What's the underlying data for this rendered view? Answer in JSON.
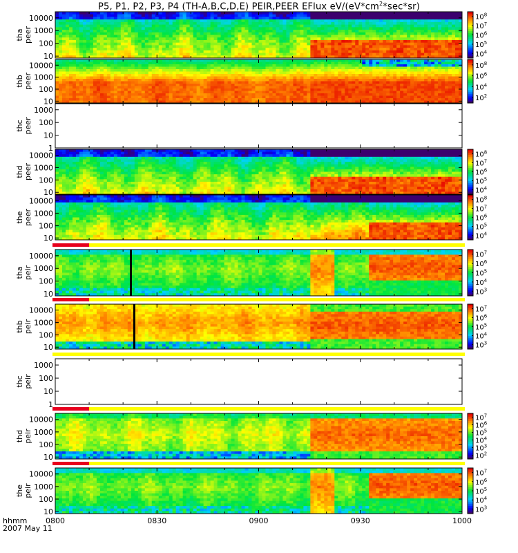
{
  "title": {
    "prefix": "P5, P1, P2, P3, P4 (TH-A,B,C,D,E) PEIR,PEER EFlux eV/(eV*cm",
    "exponent": "2",
    "suffix": "*sec*sr)"
  },
  "footer": {
    "xunit": "hhmm",
    "date": "2007 May 11"
  },
  "chart_data": {
    "type": "heatmap",
    "x_ticks": [
      "0800",
      "0830",
      "0900",
      "0930",
      "1000"
    ],
    "xlim_hhmm": [
      "0800",
      "1000"
    ],
    "y_scale": "log",
    "colormap": "rainbow (purple-blue-cyan-green-yellow-red)",
    "panels": [
      {
        "id": "tha_peer",
        "label": [
          "tha",
          "peer"
        ],
        "y_ticks": [
          "10",
          "100",
          "1000",
          "10000"
        ],
        "ylim": [
          7,
          30000
        ],
        "colorbar": [
          "10^4",
          "10^5",
          "10^6",
          "10^7",
          "10^8"
        ],
        "has_data": true,
        "status_bar": false
      },
      {
        "id": "thb_peer",
        "label": [
          "thb",
          "peer"
        ],
        "y_ticks": [
          "10",
          "100",
          "1000",
          "10000"
        ],
        "ylim": [
          7,
          30000
        ],
        "colorbar": [
          "10^2",
          "10^4",
          "10^6",
          "10^8"
        ],
        "has_data": true,
        "status_bar": false
      },
      {
        "id": "thc_peer",
        "label": [
          "thc",
          "peer"
        ],
        "y_ticks": [
          "1",
          "10",
          "100",
          "1000"
        ],
        "ylim": [
          1,
          3000
        ],
        "colorbar": [],
        "has_data": false,
        "status_bar": false
      },
      {
        "id": "thd_peer",
        "label": [
          "thd",
          "peer"
        ],
        "y_ticks": [
          "10",
          "100",
          "1000",
          "10000"
        ],
        "ylim": [
          7,
          30000
        ],
        "colorbar": [
          "10^4",
          "10^5",
          "10^6",
          "10^7",
          "10^8"
        ],
        "has_data": true,
        "status_bar": false
      },
      {
        "id": "the_peer",
        "label": [
          "the",
          "peer"
        ],
        "y_ticks": [
          "10",
          "100",
          "1000",
          "10000"
        ],
        "ylim": [
          7,
          30000
        ],
        "colorbar": [
          "10^4",
          "10^5",
          "10^6",
          "10^7",
          "10^8"
        ],
        "has_data": true,
        "status_bar": false
      },
      {
        "id": "tha_peir",
        "label": [
          "tha",
          "peir"
        ],
        "y_ticks": [
          "10",
          "100",
          "1000",
          "10000"
        ],
        "ylim": [
          7,
          30000
        ],
        "colorbar": [
          "10^3",
          "10^4",
          "10^5",
          "10^6",
          "10^7"
        ],
        "has_data": true,
        "status_bar": true
      },
      {
        "id": "thb_peir",
        "label": [
          "thb",
          "peir"
        ],
        "y_ticks": [
          "10",
          "100",
          "1000",
          "10000"
        ],
        "ylim": [
          7,
          30000
        ],
        "colorbar": [
          "10^3",
          "10^4",
          "10^5",
          "10^6",
          "10^7"
        ],
        "has_data": true,
        "status_bar": true
      },
      {
        "id": "thc_peir",
        "label": [
          "thc",
          "peir"
        ],
        "y_ticks": [
          "1",
          "10",
          "100",
          "1000"
        ],
        "ylim": [
          1,
          3000
        ],
        "colorbar": [],
        "has_data": false,
        "status_bar": true
      },
      {
        "id": "thd_peir",
        "label": [
          "thd",
          "peir"
        ],
        "y_ticks": [
          "10",
          "100",
          "1000",
          "10000"
        ],
        "ylim": [
          7,
          30000
        ],
        "colorbar": [
          "10^2",
          "10^3",
          "10^4",
          "10^5",
          "10^6",
          "10^7"
        ],
        "has_data": true,
        "status_bar": true
      },
      {
        "id": "the_peir",
        "label": [
          "the",
          "peir"
        ],
        "y_ticks": [
          "10",
          "100",
          "1000",
          "10000"
        ],
        "ylim": [
          7,
          30000
        ],
        "colorbar": [
          "10^3",
          "10^4",
          "10^5",
          "10^6",
          "10^7"
        ],
        "has_data": true,
        "status_bar": true
      }
    ],
    "status_bar_colors": {
      "bad": "#e8001c",
      "good": "#ffff00"
    }
  }
}
